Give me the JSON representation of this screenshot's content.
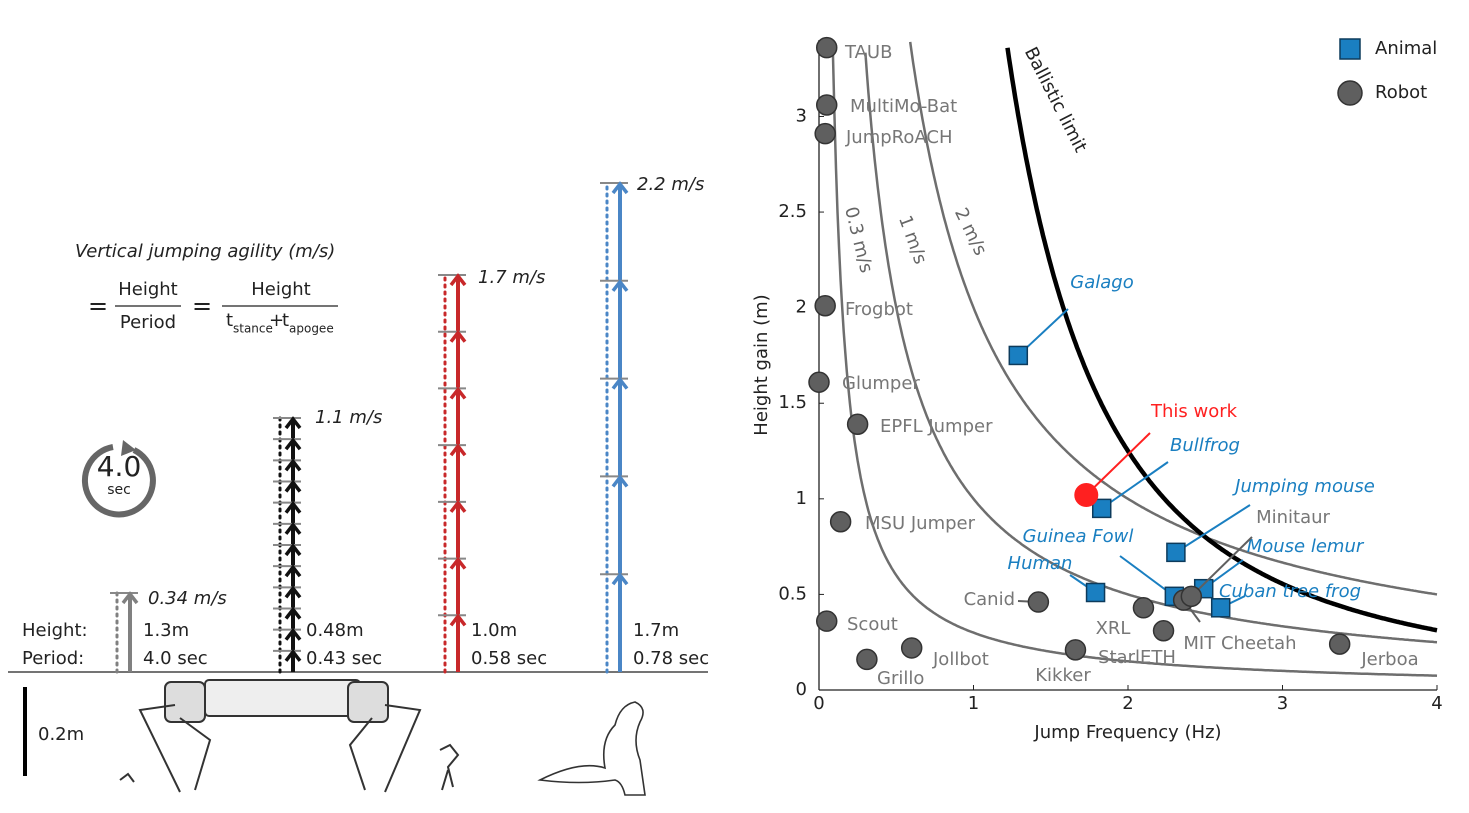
{
  "left_panel": {
    "title": "Vertical jumping agility (m/s)",
    "equation": {
      "equals": "=",
      "num1": "Height",
      "den1": "Period",
      "num2": "Height",
      "t1": "t",
      "t1_sub": "stance",
      "plus": "+",
      "t2": "t",
      "t2_sub": "apogee"
    },
    "timer": {
      "value": "4.0",
      "unit": "sec"
    },
    "row_labels": [
      "Height:",
      "Period:"
    ],
    "columns": [
      {
        "speed": "0.34 m/s",
        "height": "1.3m",
        "period": "4.0 sec",
        "color": "#808080"
      },
      {
        "speed": "1.1 m/s",
        "height": "0.48m",
        "period": "0.43 sec",
        "color": "#111111"
      },
      {
        "speed": "1.7 m/s",
        "height": "1.0m",
        "period": "0.58 sec",
        "color": "#c8282a"
      },
      {
        "speed": "2.2 m/s",
        "height": "1.7m",
        "period": "0.78 sec",
        "color": "#4a86c6"
      }
    ],
    "scale_bar": "0.2m"
  },
  "chart_data": {
    "type": "scatter",
    "x_label": "Jump Frequency (Hz)",
    "y_label": "Height gain (m)",
    "xlim": [
      0,
      4
    ],
    "ylim": [
      0,
      3.4
    ],
    "xticks": [
      0,
      1,
      2,
      3,
      4
    ],
    "yticks": [
      0,
      0.5,
      1,
      1.5,
      2,
      2.5,
      3
    ],
    "legend": "top-right",
    "series": [
      {
        "name": "Animal",
        "color": "#1a7fc1",
        "marker": "square",
        "labels": [
          "Galago",
          "Bullfrog",
          "Jumping mouse",
          "Guinea Fowl",
          "Human",
          "Mouse lemur",
          "Cuban tree frog"
        ],
        "x": [
          1.29,
          1.83,
          2.31,
          2.3,
          1.79,
          2.49,
          2.6
        ],
        "values": [
          1.75,
          0.95,
          0.72,
          0.49,
          0.51,
          0.53,
          0.43
        ]
      },
      {
        "name": "Robot",
        "color": "#5f5f5f",
        "marker": "circle",
        "labels": [
          "TAUB",
          "MultiMo-Bat",
          "JumpRoACH",
          "Frogbot",
          "Glumper",
          "EPFL Jumper",
          "MSU Jumper",
          "Scout",
          "Grillo",
          "Jollbot",
          "Canid",
          "Kikker",
          "XRL",
          "StarlETH",
          "MIT Cheetah",
          "Minitaur",
          "Jerboa"
        ],
        "x": [
          0.05,
          0.05,
          0.04,
          0.04,
          0.0,
          0.25,
          0.14,
          0.05,
          0.31,
          0.6,
          1.42,
          1.66,
          2.1,
          2.23,
          2.36,
          2.41,
          3.37
        ],
        "values": [
          3.36,
          3.06,
          2.91,
          2.01,
          1.61,
          1.39,
          0.88,
          0.36,
          0.16,
          0.22,
          0.46,
          0.21,
          0.43,
          0.31,
          0.47,
          0.49,
          0.24
        ]
      }
    ],
    "highlight": {
      "label": "This work",
      "x": 1.73,
      "y": 1.02,
      "color": "#ff2020"
    },
    "iso_speed_curves": [
      {
        "label": "0.3 m/s",
        "speed": 0.3
      },
      {
        "label": "1 m/s",
        "speed": 1
      },
      {
        "label": "2 m/s",
        "speed": 2
      }
    ],
    "ballistic_limit": {
      "label": "Ballistic limit",
      "coefficient": 5.0
    }
  }
}
